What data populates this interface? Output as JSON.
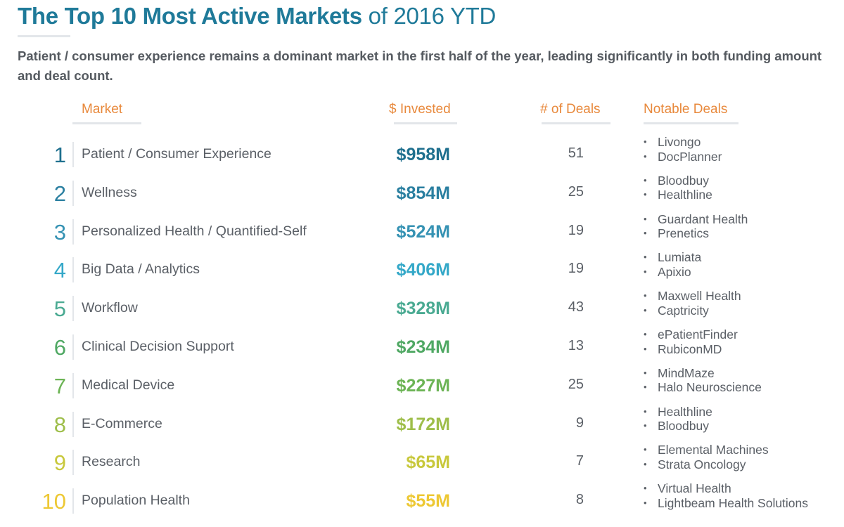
{
  "title": {
    "bold": "The Top 10 Most Active Markets",
    "light": " of 2016 YTD"
  },
  "subtitle": "Patient / consumer experience remains a dominant market in the first half of the year, leading significantly in both funding amount and deal count.",
  "headers": {
    "market": "Market",
    "invested": "$ Invested",
    "deals": "# of Deals",
    "notable": "Notable Deals"
  },
  "colors": {
    "title": "#1f7a99",
    "header": "#e8893c",
    "body_text": "#5a5f66"
  },
  "rows": [
    {
      "rank": "1",
      "market": "Patient / Consumer Experience",
      "invested": "$958M",
      "deals": "51",
      "notable": [
        "Livongo",
        "DocPlanner"
      ],
      "color": "#1e6f8e"
    },
    {
      "rank": "2",
      "market": "Wellness",
      "invested": "$854M",
      "deals": "25",
      "notable": [
        "Bloodbuy",
        "Healthline"
      ],
      "color": "#2a7fa0"
    },
    {
      "rank": "3",
      "market": "Personalized Health / Quantified-Self",
      "invested": "$524M",
      "deals": "19",
      "notable": [
        "Guardant Health",
        "Prenetics"
      ],
      "color": "#3592b3"
    },
    {
      "rank": "4",
      "market": "Big Data / Analytics",
      "invested": "$406M",
      "deals": "19",
      "notable": [
        "Lumiata",
        "Apixio"
      ],
      "color": "#34a8c8"
    },
    {
      "rank": "5",
      "market": "Workflow",
      "invested": "$328M",
      "deals": "43",
      "notable": [
        "Maxwell Health",
        "Captricity"
      ],
      "color": "#4aaa92"
    },
    {
      "rank": "6",
      "market": "Clinical Decision Support",
      "invested": "$234M",
      "deals": "13",
      "notable": [
        "ePatientFinder",
        "RubiconMD"
      ],
      "color": "#4fa863"
    },
    {
      "rank": "7",
      "market": "Medical Device",
      "invested": "$227M",
      "deals": "25",
      "notable": [
        "MindMaze",
        "Halo Neuroscience"
      ],
      "color": "#6cb455"
    },
    {
      "rank": "8",
      "market": "E-Commerce",
      "invested": "$172M",
      "deals": "9",
      "notable": [
        "Healthline",
        "Bloodbuy"
      ],
      "color": "#9ebe4a"
    },
    {
      "rank": "9",
      "market": "Research",
      "invested": "$65M",
      "deals": "7",
      "notable": [
        "Elemental Machines",
        "Strata Oncology"
      ],
      "color": "#c8c83c"
    },
    {
      "rank": "10",
      "market": "Population Health",
      "invested": "$55M",
      "deals": "8",
      "notable": [
        "Virtual Health",
        "Lightbeam Health Solutions"
      ],
      "color": "#edc834"
    }
  ]
}
